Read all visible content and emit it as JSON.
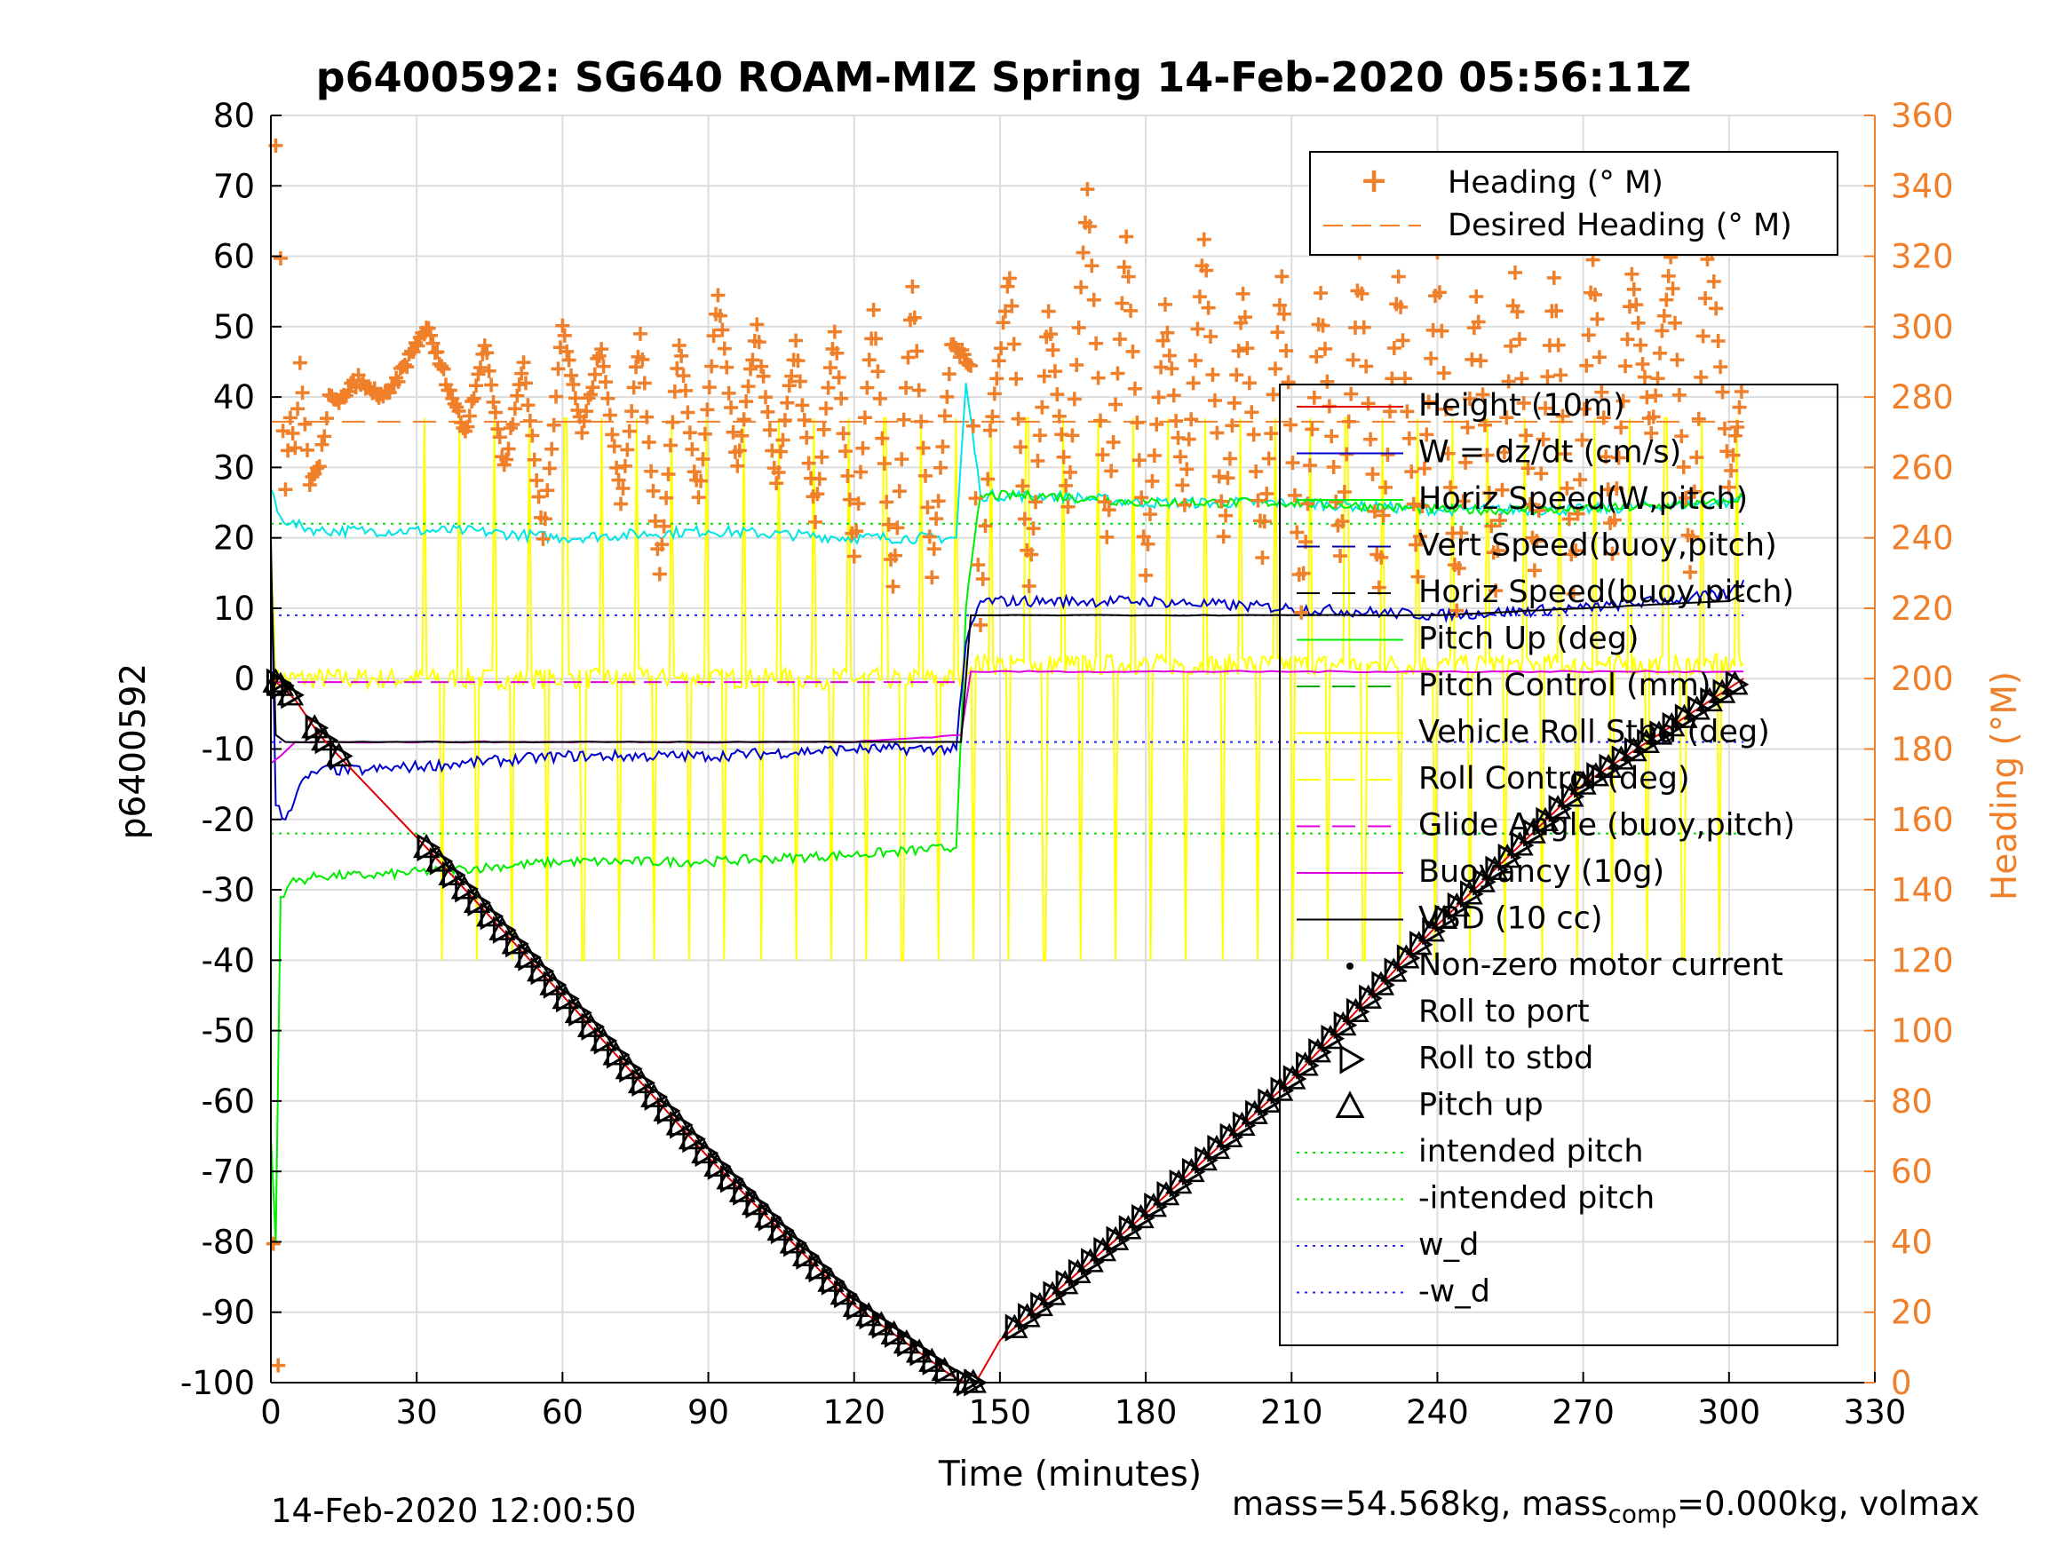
{
  "chart_data": {
    "type": "line",
    "title": "p6400592: SG640 ROAM-MIZ Spring 14-Feb-2020 05:56:11Z",
    "xlabel": "Time (minutes)",
    "ylabel": "p6400592",
    "y2label": "Heading (°M)",
    "xlim": [
      0,
      330
    ],
    "ylim": [
      -100,
      80
    ],
    "y2lim": [
      0,
      360
    ],
    "xticks": [
      "0",
      "30",
      "60",
      "90",
      "120",
      "150",
      "180",
      "210",
      "240",
      "270",
      "300",
      "330"
    ],
    "yticks": [
      "80",
      "70",
      "60",
      "50",
      "40",
      "30",
      "20",
      "10",
      "0",
      "-10",
      "-20",
      "-30",
      "-40",
      "-50",
      "-60",
      "-70",
      "-80",
      "-90",
      "-100"
    ],
    "y2ticks": [
      "360",
      "340",
      "320",
      "300",
      "280",
      "260",
      "240",
      "220",
      "200",
      "180",
      "160",
      "140",
      "120",
      "100",
      "80",
      "60",
      "40",
      "20",
      "0"
    ],
    "grid": true,
    "colors": {
      "heading": "#f07f2a",
      "height": "#e00000",
      "w": "#0000cc",
      "horiz_speed": "#00ee00",
      "vehicle_roll": "#ffff00",
      "cyan": "#00e5e5",
      "glide": "#e000e0",
      "vbd": "#000000",
      "intended": "#00dd00",
      "wd": "#2222ff"
    },
    "legend_top": {
      "position": "top-right",
      "entries": [
        "Heading (° M)",
        "Desired Heading (° M)"
      ]
    },
    "legend_main": {
      "position": "right",
      "entries": [
        "Height (10m)",
        "W = dz/dt (cm/s)",
        "Horiz Speed(W,pitch)",
        "Vert Speed(buoy,pitch)",
        "Horiz Speed(buoy,pitch)",
        "Pitch Up (deg)",
        "Pitch Control (mm)",
        "Vehicle Roll Stbd (deg)",
        "Roll Control (deg)",
        "Glide Angle (buoy,pitch)",
        "Buoyancy (10g)",
        "VBD (10 cc)",
        "Non-zero motor current",
        "Roll to port",
        "Roll to stbd",
        "Pitch up",
        "intended pitch",
        "-intended pitch",
        "w_d",
        "-w_d"
      ]
    },
    "series": [
      {
        "name": "Height (10m)",
        "x": [
          0,
          2,
          5,
          10,
          14,
          32,
          60,
          90,
          120,
          140,
          143,
          145,
          150,
          180,
          210,
          240,
          270,
          303
        ],
        "values": [
          0,
          -1,
          -3,
          -8,
          -11,
          -24,
          -45,
          -68,
          -89,
          -99,
          -100,
          -100,
          -94,
          -76,
          -57,
          -35,
          -15,
          0
        ]
      },
      {
        "name": "W = dz/dt (cm/s)",
        "x": [
          0,
          1,
          3,
          6,
          10,
          20,
          40,
          60,
          90,
          120,
          141,
          143,
          146,
          160,
          180,
          210,
          240,
          270,
          300,
          303
        ],
        "values": [
          20,
          -18,
          -20,
          -15,
          -13,
          -13,
          -12,
          -11,
          -11,
          -10,
          -10,
          5,
          11,
          11,
          11,
          10,
          9,
          10,
          12,
          14
        ]
      },
      {
        "name": "Horiz Speed(W,pitch)",
        "x": [
          0,
          2,
          4,
          10,
          20,
          40,
          60,
          90,
          120,
          141,
          143,
          146,
          160,
          180,
          210,
          240,
          270,
          300,
          303
        ],
        "values": [
          27,
          23,
          22,
          21,
          21,
          21,
          20,
          21,
          20,
          20,
          42,
          26,
          26,
          25,
          25,
          24,
          24,
          25,
          26
        ]
      },
      {
        "name": "Pitch Up (deg)",
        "x": [
          0,
          1,
          2,
          4,
          10,
          20,
          40,
          60,
          90,
          120,
          141,
          143,
          146,
          160,
          180,
          210,
          240,
          270,
          300,
          303
        ],
        "values": [
          -65,
          -80,
          -31,
          -29,
          -28,
          -28,
          -27,
          -26,
          -26,
          -25,
          -24,
          10,
          26,
          26,
          25,
          25,
          24,
          24,
          25,
          26
        ]
      },
      {
        "name": "VBD (10 cc)",
        "x": [
          0,
          1,
          3,
          10,
          60,
          120,
          142,
          144,
          150,
          180,
          240,
          300,
          303
        ],
        "values": [
          17,
          -8,
          -9,
          -9,
          -9,
          -9,
          -9,
          9,
          9,
          9,
          9,
          11,
          12
        ]
      },
      {
        "name": "Buoyancy (10g)",
        "x": [
          0,
          2,
          5,
          10,
          60,
          120,
          142,
          144,
          303
        ],
        "values": [
          -12,
          -11,
          -9,
          -9,
          -9,
          -9,
          -8,
          1,
          1
        ]
      },
      {
        "name": "intended pitch",
        "x": [
          0,
          303
        ],
        "values": [
          22,
          22
        ]
      },
      {
        "name": "-intended pitch",
        "x": [
          0,
          303
        ],
        "values": [
          -22,
          -22
        ]
      },
      {
        "name": "w_d",
        "x": [
          0,
          303
        ],
        "values": [
          9,
          9
        ]
      },
      {
        "name": "-w_d",
        "x": [
          0,
          303
        ],
        "values": [
          -9,
          -9
        ]
      },
      {
        "name": "Desired Heading (° M)",
        "x": [
          0,
          303
        ],
        "values": [
          273,
          273
        ]
      },
      {
        "name": "Heading (° M)",
        "x": [
          0.5,
          1,
          1.5,
          2,
          2.5,
          3,
          4,
          5,
          6,
          8,
          10,
          12,
          14,
          16,
          18,
          20,
          24,
          28,
          32,
          36,
          40,
          44,
          48,
          52,
          56,
          60,
          64,
          68,
          72,
          76,
          80,
          84,
          88,
          92,
          96,
          100,
          104,
          108,
          112,
          116,
          120,
          124,
          128,
          132,
          136,
          140,
          144,
          146,
          148,
          152,
          156,
          160,
          164,
          168,
          172,
          176,
          180,
          184,
          188,
          192,
          196,
          200,
          204,
          208,
          212,
          216,
          220,
          224,
          228,
          232,
          236,
          240,
          244,
          248,
          252,
          256,
          260,
          264,
          268,
          272,
          276,
          280,
          284,
          288,
          292,
          296,
          300,
          303
        ],
        "values": [
          40,
          350,
          5,
          320,
          270,
          255,
          275,
          265,
          290,
          255,
          260,
          280,
          278,
          282,
          285,
          282,
          280,
          290,
          300,
          285,
          270,
          295,
          260,
          290,
          240,
          300,
          270,
          295,
          250,
          298,
          230,
          296,
          250,
          310,
          260,
          300,
          255,
          296,
          245,
          300,
          235,
          305,
          225,
          310,
          230,
          295,
          290,
          215,
          270,
          315,
          225,
          305,
          250,
          340,
          240,
          325,
          230,
          305,
          250,
          325,
          240,
          310,
          235,
          315,
          220,
          310,
          235,
          320,
          225,
          315,
          230,
          320,
          220,
          310,
          225,
          315,
          230,
          315,
          225,
          320,
          235,
          315,
          270,
          320,
          230,
          330,
          255,
          285
        ]
      }
    ]
  },
  "footer": {
    "timestamp": "14-Feb-2020 12:00:50",
    "mass_text": "mass=54.568kg, mass",
    "mass_sub": "comp",
    "mass_tail": "=0.000kg, volmax"
  }
}
